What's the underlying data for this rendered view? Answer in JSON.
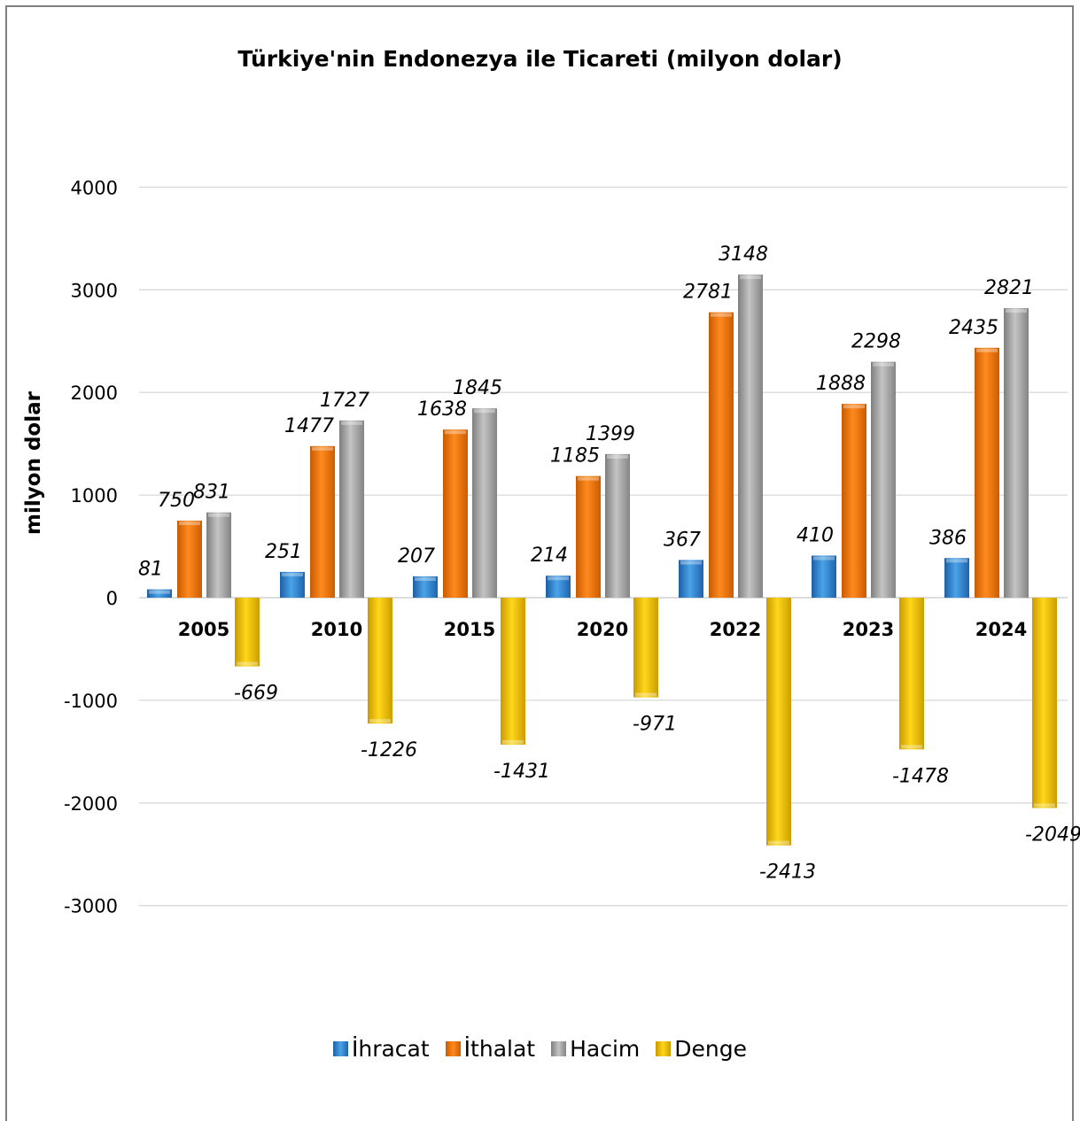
{
  "chart_data": {
    "type": "bar",
    "title": "Türkiye'nin Endonezya ile Ticareti (milyon dolar)",
    "ylabel": "milyon dolar",
    "xlabel": "",
    "categories": [
      "2005",
      "2010",
      "2015",
      "2020",
      "2022",
      "2023",
      "2024"
    ],
    "yticks": [
      "4000",
      "3000",
      "2000",
      "1000",
      "0",
      "-1000",
      "-2000",
      "-3000"
    ],
    "ylim": [
      -3000,
      4000
    ],
    "grid": true,
    "legend_position": "bottom",
    "series": [
      {
        "name": "İhracat",
        "color": "#3c8fd6",
        "values": [
          81,
          251,
          207,
          214,
          367,
          410,
          386
        ],
        "labels": [
          "81",
          "251",
          "207",
          "214",
          "367",
          "410",
          "386"
        ]
      },
      {
        "name": "İthalat",
        "color": "#f07a12",
        "values": [
          750,
          1477,
          1638,
          1185,
          2781,
          1888,
          2435
        ],
        "labels": [
          "750",
          "1477",
          "1638",
          "1185",
          "2781",
          "1888",
          "2435"
        ]
      },
      {
        "name": "Hacim",
        "color": "#a8a8a8",
        "values": [
          831,
          1727,
          1845,
          1399,
          3148,
          2298,
          2821
        ],
        "labels": [
          "831",
          "1727",
          "1845",
          "1399",
          "3148",
          "2298",
          "2821"
        ]
      },
      {
        "name": "Denge",
        "color": "#f2c400",
        "values": [
          -669,
          -1226,
          -1431,
          -971,
          -2413,
          -1478,
          -2049
        ],
        "labels": [
          "-669",
          "-1226",
          "-1431",
          "-971",
          "-2413",
          "-1478",
          "-2049"
        ]
      }
    ]
  }
}
